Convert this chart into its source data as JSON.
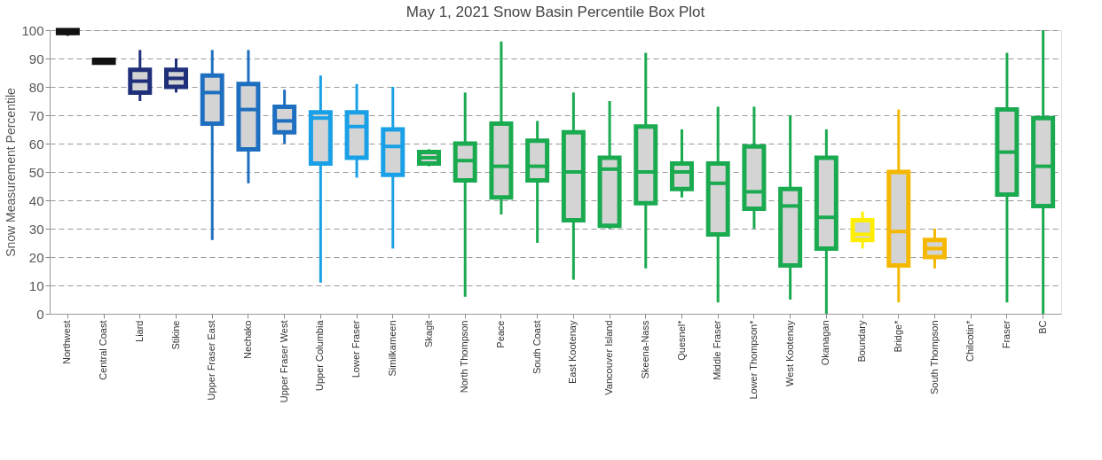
{
  "chart_data": {
    "type": "box",
    "title": "May 1, 2021 Snow Basin Percentile Box Plot",
    "ylabel": "Snow Measurement Percentile",
    "categories": [
      "Northwest",
      "Central Coast",
      "Liard",
      "Stikine",
      "Upper Fraser East",
      "Nechako",
      "Upper Fraser West",
      "Upper Columbia",
      "Lower Fraser",
      "Similkameen",
      "Skagit",
      "North Thompson",
      "Peace",
      "South Coast",
      "East Kootenay",
      "Vancouver Island",
      "Skeena-Nass",
      "Quesnel*",
      "Middle Fraser",
      "Lower Thompson*",
      "West Kootenay",
      "Okanagan",
      "Boundary",
      "Bridge*",
      "South Thompson",
      "Chilcotin*",
      "Fraser",
      "BC"
    ],
    "boxes": [
      {
        "low": 98,
        "q1": 99,
        "median": 99,
        "q3": 100,
        "high": 100
      },
      {
        "low": 88,
        "q1": 88.5,
        "median": 89,
        "q3": 89.5,
        "high": 90
      },
      {
        "low": 75,
        "q1": 78,
        "median": 82,
        "q3": 86,
        "high": 93
      },
      {
        "low": 78,
        "q1": 80,
        "median": 83,
        "q3": 86,
        "high": 90
      },
      {
        "low": 26,
        "q1": 67,
        "median": 78,
        "q3": 84,
        "high": 93
      },
      {
        "low": 46,
        "q1": 58,
        "median": 72,
        "q3": 81,
        "high": 93
      },
      {
        "low": 60,
        "q1": 64,
        "median": 68,
        "q3": 73,
        "high": 79
      },
      {
        "low": 11,
        "q1": 53,
        "median": 69,
        "q3": 71,
        "high": 84
      },
      {
        "low": 48,
        "q1": 55,
        "median": 66,
        "q3": 71,
        "high": 81
      },
      {
        "low": 23,
        "q1": 49,
        "median": 59,
        "q3": 65,
        "high": 80
      },
      {
        "low": 52,
        "q1": 53,
        "median": 55,
        "q3": 57,
        "high": 58
      },
      {
        "low": 6,
        "q1": 47,
        "median": 54,
        "q3": 60,
        "high": 78
      },
      {
        "low": 35,
        "q1": 41,
        "median": 52,
        "q3": 67,
        "high": 96
      },
      {
        "low": 25,
        "q1": 47,
        "median": 52,
        "q3": 61,
        "high": 68
      },
      {
        "low": 12,
        "q1": 33,
        "median": 50,
        "q3": 64,
        "high": 78
      },
      {
        "low": 30,
        "q1": 31,
        "median": 51,
        "q3": 55,
        "high": 75
      },
      {
        "low": 16,
        "q1": 39,
        "median": 50,
        "q3": 66,
        "high": 92
      },
      {
        "low": 41,
        "q1": 44,
        "median": 50,
        "q3": 53,
        "high": 65
      },
      {
        "low": 4,
        "q1": 28,
        "median": 46,
        "q3": 53,
        "high": 73
      },
      {
        "low": 30,
        "q1": 37,
        "median": 43,
        "q3": 59,
        "high": 73
      },
      {
        "low": 5,
        "q1": 17,
        "median": 38,
        "q3": 44,
        "high": 70
      },
      {
        "low": 0,
        "q1": 23,
        "median": 34,
        "q3": 55,
        "high": 65
      },
      {
        "low": 23,
        "q1": 26,
        "median": 28,
        "q3": 33,
        "high": 36
      },
      {
        "low": 4,
        "q1": 17,
        "median": 29,
        "q3": 50,
        "high": 72
      },
      {
        "low": 16,
        "q1": 20,
        "median": 23,
        "q3": 26,
        "high": 30
      },
      null,
      {
        "low": 4,
        "q1": 42,
        "median": 57,
        "q3": 72,
        "high": 92
      },
      {
        "low": 0,
        "q1": 38,
        "median": 52,
        "q3": 69,
        "high": 100
      }
    ],
    "colors": [
      "#111111",
      "#111111",
      "#1f2f7a",
      "#1f2f7a",
      "#1f6fc0",
      "#1f6fc0",
      "#1f6fc0",
      "#1aa0e6",
      "#1aa0e6",
      "#1aa0e6",
      "#1aaa50",
      "#1aaa50",
      "#1aaa50",
      "#1aaa50",
      "#1aaa50",
      "#1aaa50",
      "#1aaa50",
      "#1aaa50",
      "#1aaa50",
      "#1aaa50",
      "#1aaa50",
      "#1aaa50",
      "#ffee00",
      "#f5b800",
      "#f5b800",
      "#1aaa50",
      "#1aaa50",
      "#1aaa50"
    ],
    "ylim": [
      0,
      100
    ],
    "yticks": [
      0,
      10,
      20,
      30,
      40,
      50,
      60,
      70,
      80,
      90,
      100
    ],
    "grid": "y"
  }
}
